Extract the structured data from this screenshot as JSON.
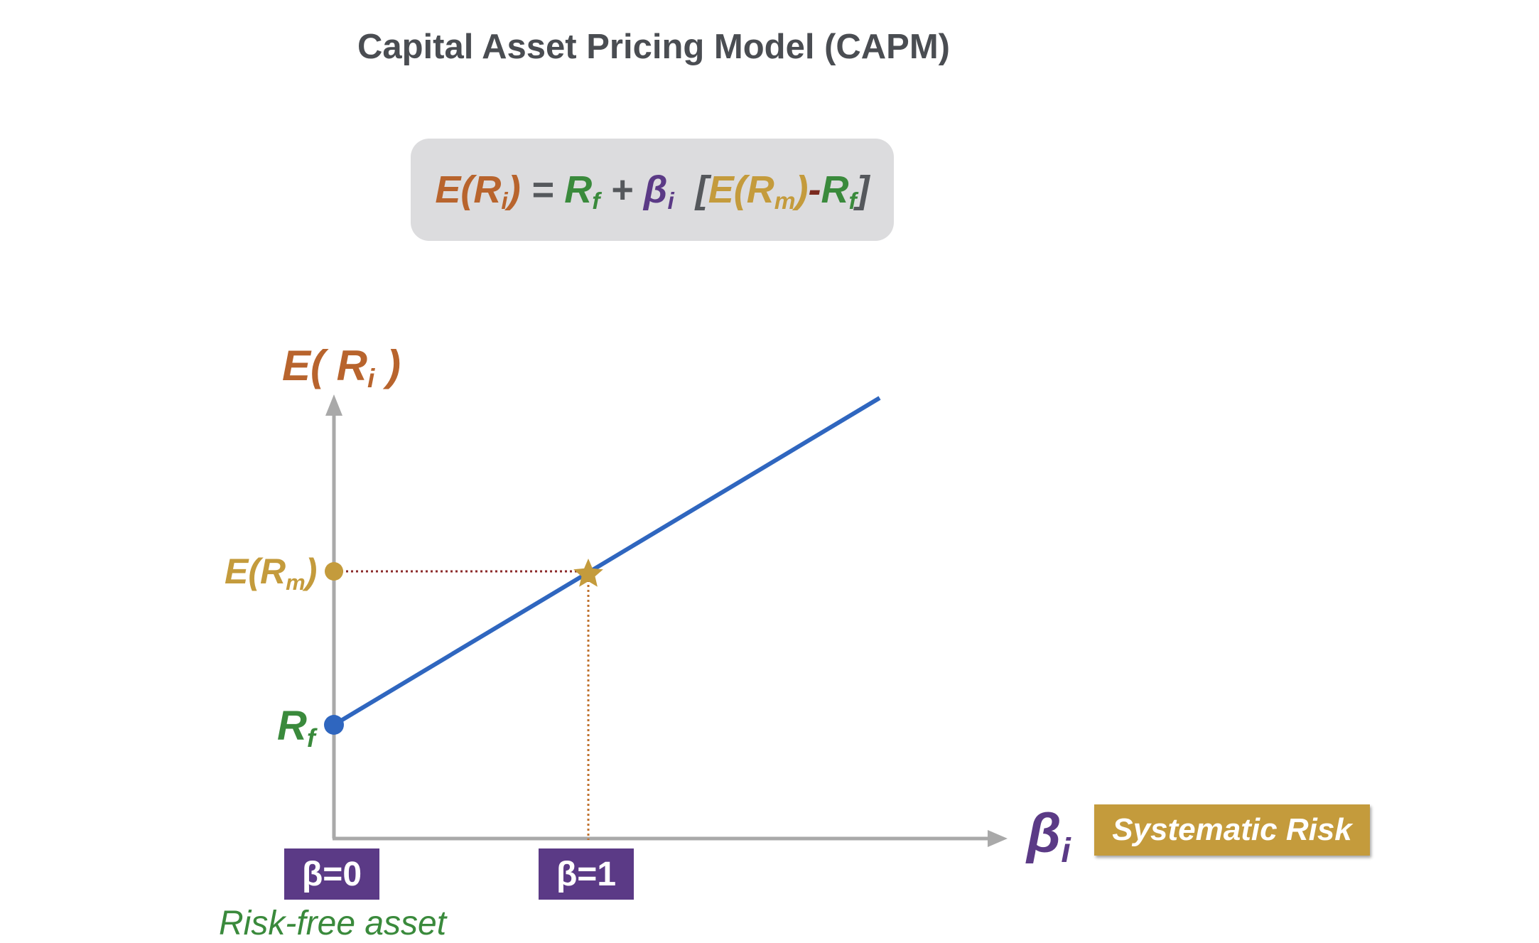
{
  "title": "Capital Asset Pricing Model (CAPM)",
  "formula": {
    "lhs_e": "E(R",
    "lhs_sub": "i",
    "lhs_close": ")",
    "equals": " = ",
    "rf": "R",
    "rf_sub": "f",
    "plus": " + ",
    "beta": "β",
    "beta_sub": "i",
    "open_bracket": "  [",
    "erm": "E(R",
    "erm_sub": "m",
    "erm_close": ")",
    "minus": "-",
    "rf2": "R",
    "rf2_sub": "f",
    "close_bracket": "]"
  },
  "y_axis_label": {
    "main": "E( R",
    "sub": "i",
    "close": " )"
  },
  "points": {
    "erm": {
      "main": "E(R",
      "sub": "m",
      "close": ")"
    },
    "rf": {
      "main": "R",
      "sub": "f"
    }
  },
  "x_axis_label": {
    "main": "β",
    "sub": "i"
  },
  "systematic_risk": "Systematic Risk",
  "ticks": {
    "beta0": "β=0",
    "beta1": "β=1"
  },
  "caption": "Risk-free asset",
  "colors": {
    "line": "#2f66bf",
    "axis": "#a9a9a9",
    "orange": "#b8642d",
    "green": "#3a8a3c",
    "purple": "#5b3a86",
    "gold": "#c49b3c",
    "dotted_h": "#8b2a2a",
    "dotted_v": "#c0722e"
  },
  "chart_data": {
    "type": "line",
    "x": [
      0,
      1
    ],
    "series": [
      {
        "values": [
          0,
          1
        ]
      }
    ],
    "annotations": [
      "β=0",
      "β=1",
      "Risk-free asset",
      "Systematic Risk"
    ]
  }
}
